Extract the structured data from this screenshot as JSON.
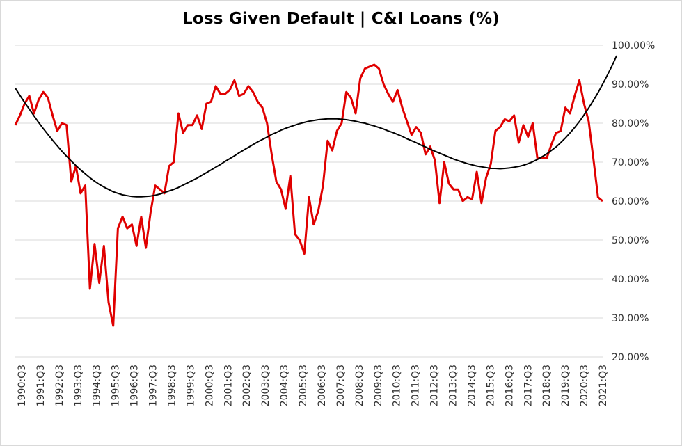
{
  "chart_data": {
    "type": "line",
    "title": "Loss Given Default | C&I Loans (%)",
    "xlabel": "",
    "ylabel": "",
    "ylim": [
      20,
      100
    ],
    "y_ticks": [
      "20.00%",
      "30.00%",
      "40.00%",
      "50.00%",
      "60.00%",
      "70.00%",
      "80.00%",
      "90.00%",
      "100.00%"
    ],
    "x_tick_labels": [
      "1990:Q3",
      "1991:Q3",
      "1992:Q3",
      "1993:Q3",
      "1994:Q3",
      "1995:Q3",
      "1996:Q3",
      "1997:Q3",
      "1998:Q3",
      "1999:Q3",
      "2000:Q3",
      "2001:Q3",
      "2002:Q3",
      "2003:Q3",
      "2004:Q3",
      "2005:Q3",
      "2006:Q3",
      "2007:Q3",
      "2008:Q3",
      "2009:Q3",
      "2010:Q3",
      "2011:Q3",
      "2012:Q3",
      "2013:Q3",
      "2014:Q3",
      "2015:Q3",
      "2016:Q3",
      "2017:Q3",
      "2018:Q3",
      "2019:Q3",
      "2020:Q3",
      "2021:Q3"
    ],
    "grid": "horizontal",
    "legend": "none",
    "y_axis_side": "right",
    "series": [
      {
        "color": "#e00000",
        "values": [
          79.5,
          82,
          85,
          87,
          82.5,
          86,
          88,
          86.5,
          82,
          78,
          80,
          79.5,
          65,
          69,
          62,
          64,
          37.5,
          49,
          39,
          48.5,
          34,
          28,
          53,
          56,
          53,
          54,
          48.5,
          56,
          48,
          57,
          64,
          63,
          62,
          69,
          70,
          82.5,
          77.5,
          79.5,
          79.5,
          82,
          78.5,
          85,
          85.5,
          89.5,
          87.5,
          87.5,
          88.5,
          91,
          87,
          87.5,
          89.5,
          88,
          85.5,
          84,
          80,
          72,
          65,
          63,
          58,
          66.5,
          51.5,
          50,
          46.5,
          61,
          54,
          57.5,
          64,
          75.5,
          73,
          78,
          80,
          88,
          86.5,
          82.5,
          91.5,
          94,
          94.5,
          95,
          94,
          90,
          87.5,
          85.5,
          88.5,
          84,
          80.5,
          77,
          79,
          77.5,
          72,
          74,
          70.5,
          59.5,
          70,
          64.5,
          63,
          63,
          60,
          61,
          60.5,
          67.5,
          59.5,
          66,
          69.5,
          78,
          79,
          81,
          80.5,
          82,
          75,
          79.5,
          76.5,
          80,
          71,
          71,
          71,
          74.5,
          77.5,
          78,
          84,
          82.5,
          87,
          91,
          85,
          80.5,
          71,
          61,
          60
        ]
      },
      {
        "color": "#000000",
        "values": [
          89,
          87.1,
          85.3,
          83.6,
          81.9,
          80.2,
          78.6,
          77.1,
          75.6,
          74.2,
          72.8,
          71.5,
          70.3,
          69.1,
          68,
          67,
          66,
          65.1,
          64.3,
          63.6,
          63,
          62.4,
          62,
          61.6,
          61.4,
          61.2,
          61.1,
          61.1,
          61.2,
          61.3,
          61.5,
          61.8,
          62.2,
          62.6,
          63,
          63.5,
          64.1,
          64.7,
          65.3,
          65.9,
          66.6,
          67.3,
          68,
          68.7,
          69.4,
          70.2,
          70.9,
          71.6,
          72.4,
          73.1,
          73.8,
          74.5,
          75.2,
          75.8,
          76.4,
          77.1,
          77.6,
          78.2,
          78.7,
          79.1,
          79.5,
          79.9,
          80.2,
          80.5,
          80.7,
          80.9,
          81,
          81.1,
          81.1,
          81.1,
          81,
          80.9,
          80.7,
          80.5,
          80.2,
          80,
          79.6,
          79.3,
          78.9,
          78.5,
          78,
          77.6,
          77.1,
          76.6,
          76,
          75.5,
          75,
          74.4,
          73.9,
          73.3,
          72.8,
          72.3,
          71.8,
          71.3,
          70.8,
          70.4,
          70,
          69.6,
          69.3,
          69,
          68.8,
          68.6,
          68.4,
          68.4,
          68.3,
          68.4,
          68.5,
          68.7,
          68.9,
          69.2,
          69.6,
          70.1,
          70.7,
          71.4,
          72.1,
          73,
          73.9,
          75,
          76.2,
          77.5,
          78.9,
          80.4,
          82.1,
          83.9,
          85.8,
          87.8,
          90,
          92.3,
          94.7,
          97.3
        ]
      }
    ]
  }
}
